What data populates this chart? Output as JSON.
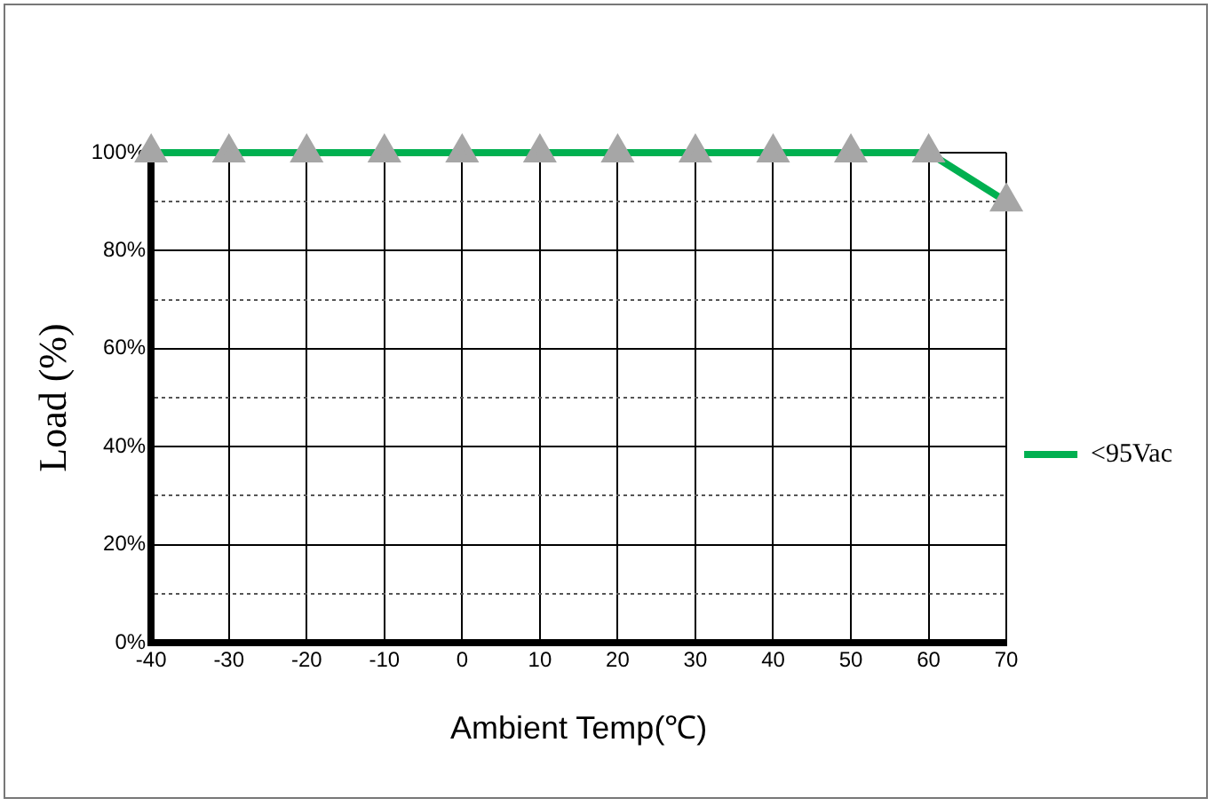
{
  "chart_data": {
    "type": "line",
    "xlabel": "Ambient Temp(℃)",
    "ylabel": "Load (%)",
    "x": [
      -40,
      -30,
      -20,
      -10,
      0,
      10,
      20,
      30,
      40,
      50,
      60,
      70
    ],
    "series": [
      {
        "name": "<95Vac",
        "color": "#00b050",
        "values": [
          100,
          100,
          100,
          100,
          100,
          100,
          100,
          100,
          100,
          100,
          100,
          90
        ]
      }
    ],
    "xlim": [
      -40,
      70
    ],
    "xticks": [
      -40,
      -30,
      -20,
      -10,
      0,
      10,
      20,
      30,
      40,
      50,
      60,
      70
    ],
    "ylim": [
      0,
      100
    ],
    "yticks": [
      {
        "value": 0,
        "label": "0%"
      },
      {
        "value": 10,
        "label": null
      },
      {
        "value": 20,
        "label": "20%"
      },
      {
        "value": 30,
        "label": null
      },
      {
        "value": 40,
        "label": "40%"
      },
      {
        "value": 50,
        "label": null
      },
      {
        "value": 60,
        "label": "60%"
      },
      {
        "value": 70,
        "label": null
      },
      {
        "value": 80,
        "label": "80%"
      },
      {
        "value": 90,
        "label": null
      },
      {
        "value": 100,
        "label": "100%"
      }
    ],
    "grid": true,
    "legend": "right",
    "marker": "triangle",
    "line_style": "solid"
  }
}
